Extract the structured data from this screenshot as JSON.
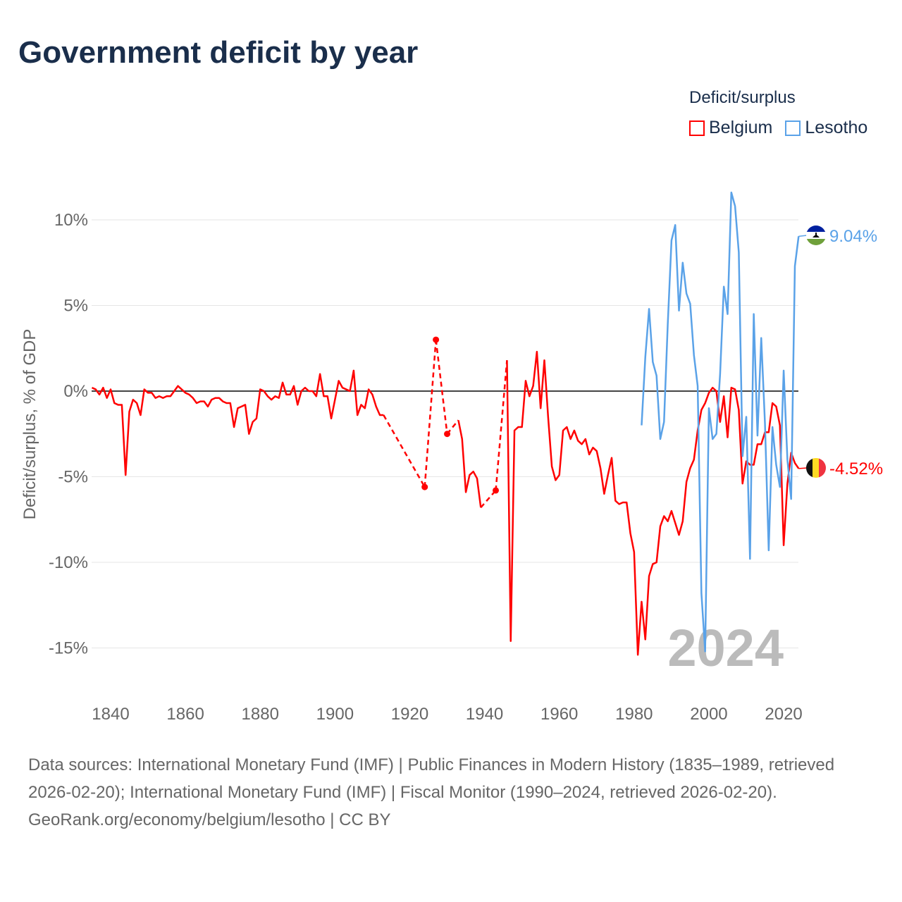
{
  "title": "Government deficit by year",
  "legend": {
    "title": "Deficit/surplus",
    "items": [
      {
        "name": "Belgium",
        "color": "#ff0000"
      },
      {
        "name": "Lesotho",
        "color": "#5aa2e8"
      }
    ]
  },
  "footer": {
    "sources": "Data sources: International Monetary Fund (IMF) | Public Finances in Modern History (1835–1989, retrieved 2026-02-20); International Monetary Fund (IMF) | Fiscal Monitor (1990–2024, retrieved 2026-02-20).",
    "credit": "GeoRank.org/economy/belgium/lesotho | CC BY"
  },
  "chart_data": {
    "type": "line",
    "title": "Government deficit by year",
    "xlabel": "",
    "ylabel": "Deficit/surplus, % of GDP",
    "xlim": [
      1835,
      2024
    ],
    "ylim": [
      -17,
      12
    ],
    "x_ticks": [
      1840,
      1860,
      1880,
      1900,
      1920,
      1940,
      1960,
      1980,
      2000,
      2020
    ],
    "y_ticks": [
      10,
      5,
      0,
      -5,
      -10,
      -15
    ],
    "y_tick_labels": [
      "10%",
      "5%",
      "0%",
      "-5%",
      "-10%",
      "-15%"
    ],
    "grid": true,
    "legend_position": "top-right",
    "year_watermark": "2024",
    "series": [
      {
        "name": "Belgium",
        "color": "#ff0000",
        "end_label": "-4.52%",
        "points": [
          [
            1835,
            0.2
          ],
          [
            1836,
            0.1
          ],
          [
            1837,
            -0.2
          ],
          [
            1838,
            0.2
          ],
          [
            1839,
            -0.4
          ],
          [
            1840,
            0.1
          ],
          [
            1841,
            -0.7
          ],
          [
            1842,
            -0.8
          ],
          [
            1843,
            -0.8
          ],
          [
            1844,
            -4.9
          ],
          [
            1845,
            -1.2
          ],
          [
            1846,
            -0.5
          ],
          [
            1847,
            -0.7
          ],
          [
            1848,
            -1.4
          ],
          [
            1849,
            0.1
          ],
          [
            1850,
            -0.1
          ],
          [
            1851,
            -0.1
          ],
          [
            1852,
            -0.4
          ],
          [
            1853,
            -0.3
          ],
          [
            1854,
            -0.4
          ],
          [
            1855,
            -0.3
          ],
          [
            1856,
            -0.3
          ],
          [
            1857,
            0.0
          ],
          [
            1858,
            0.3
          ],
          [
            1859,
            0.1
          ],
          [
            1860,
            -0.1
          ],
          [
            1861,
            -0.2
          ],
          [
            1862,
            -0.4
          ],
          [
            1863,
            -0.7
          ],
          [
            1864,
            -0.6
          ],
          [
            1865,
            -0.6
          ],
          [
            1866,
            -0.9
          ],
          [
            1867,
            -0.5
          ],
          [
            1868,
            -0.4
          ],
          [
            1869,
            -0.4
          ],
          [
            1870,
            -0.6
          ],
          [
            1871,
            -0.7
          ],
          [
            1872,
            -0.7
          ],
          [
            1873,
            -2.1
          ],
          [
            1874,
            -1.0
          ],
          [
            1875,
            -0.9
          ],
          [
            1876,
            -0.8
          ],
          [
            1877,
            -2.5
          ],
          [
            1878,
            -1.8
          ],
          [
            1879,
            -1.6
          ],
          [
            1880,
            0.1
          ],
          [
            1881,
            0.0
          ],
          [
            1882,
            -0.3
          ],
          [
            1883,
            -0.5
          ],
          [
            1884,
            -0.3
          ],
          [
            1885,
            -0.4
          ],
          [
            1886,
            0.5
          ],
          [
            1887,
            -0.2
          ],
          [
            1888,
            -0.2
          ],
          [
            1889,
            0.3
          ],
          [
            1890,
            -0.8
          ],
          [
            1891,
            0.0
          ],
          [
            1892,
            0.2
          ],
          [
            1893,
            0.0
          ],
          [
            1894,
            0.0
          ],
          [
            1895,
            -0.3
          ],
          [
            1896,
            1.0
          ],
          [
            1897,
            -0.3
          ],
          [
            1898,
            -0.3
          ],
          [
            1899,
            -1.6
          ],
          [
            1900,
            -0.5
          ],
          [
            1901,
            0.6
          ],
          [
            1902,
            0.2
          ],
          [
            1903,
            0.1
          ],
          [
            1904,
            0.0
          ],
          [
            1905,
            1.2
          ],
          [
            1906,
            -1.4
          ],
          [
            1907,
            -0.8
          ],
          [
            1908,
            -1.0
          ],
          [
            1909,
            0.1
          ],
          [
            1910,
            -0.2
          ],
          [
            1911,
            -0.9
          ],
          [
            1912,
            -1.4
          ],
          [
            1913,
            -1.4
          ],
          [
            1924,
            -5.6
          ],
          [
            1927,
            3.0
          ],
          [
            1930,
            -2.5
          ],
          [
            1933,
            -1.7
          ],
          [
            1934,
            -2.8
          ],
          [
            1935,
            -5.9
          ],
          [
            1936,
            -4.9
          ],
          [
            1937,
            -4.7
          ],
          [
            1938,
            -5.1
          ],
          [
            1939,
            -6.8
          ],
          [
            1943,
            -5.8
          ],
          [
            1946,
            1.8
          ],
          [
            1947,
            -14.6
          ],
          [
            1948,
            -2.3
          ],
          [
            1949,
            -2.1
          ],
          [
            1950,
            -2.1
          ],
          [
            1951,
            0.6
          ],
          [
            1952,
            -0.3
          ],
          [
            1953,
            0.3
          ],
          [
            1954,
            2.3
          ],
          [
            1955,
            -1.0
          ],
          [
            1956,
            1.8
          ],
          [
            1957,
            -1.5
          ],
          [
            1958,
            -4.4
          ],
          [
            1959,
            -5.2
          ],
          [
            1960,
            -4.9
          ],
          [
            1961,
            -2.3
          ],
          [
            1962,
            -2.1
          ],
          [
            1963,
            -2.8
          ],
          [
            1964,
            -2.3
          ],
          [
            1965,
            -2.9
          ],
          [
            1966,
            -3.1
          ],
          [
            1967,
            -2.8
          ],
          [
            1968,
            -3.7
          ],
          [
            1969,
            -3.3
          ],
          [
            1970,
            -3.5
          ],
          [
            1971,
            -4.5
          ],
          [
            1972,
            -6.0
          ],
          [
            1973,
            -4.9
          ],
          [
            1974,
            -3.9
          ],
          [
            1975,
            -6.4
          ],
          [
            1976,
            -6.6
          ],
          [
            1977,
            -6.5
          ],
          [
            1978,
            -6.5
          ],
          [
            1979,
            -8.3
          ],
          [
            1980,
            -9.4
          ],
          [
            1981,
            -15.4
          ],
          [
            1982,
            -12.3
          ],
          [
            1983,
            -14.5
          ],
          [
            1984,
            -10.8
          ],
          [
            1985,
            -10.1
          ],
          [
            1986,
            -10.0
          ],
          [
            1987,
            -7.9
          ],
          [
            1988,
            -7.3
          ],
          [
            1989,
            -7.6
          ],
          [
            1990,
            -7.0
          ],
          [
            1991,
            -7.7
          ],
          [
            1992,
            -8.4
          ],
          [
            1993,
            -7.6
          ],
          [
            1994,
            -5.3
          ],
          [
            1995,
            -4.5
          ],
          [
            1996,
            -4.0
          ],
          [
            1997,
            -2.3
          ],
          [
            1998,
            -1.1
          ],
          [
            1999,
            -0.7
          ],
          [
            2000,
            -0.1
          ],
          [
            2001,
            0.2
          ],
          [
            2002,
            0.0
          ],
          [
            2003,
            -1.8
          ],
          [
            2004,
            -0.3
          ],
          [
            2005,
            -2.7
          ],
          [
            2006,
            0.2
          ],
          [
            2007,
            0.1
          ],
          [
            2008,
            -1.1
          ],
          [
            2009,
            -5.4
          ],
          [
            2010,
            -4.1
          ],
          [
            2011,
            -4.3
          ],
          [
            2012,
            -4.3
          ],
          [
            2013,
            -3.1
          ],
          [
            2014,
            -3.1
          ],
          [
            2015,
            -2.4
          ],
          [
            2016,
            -2.4
          ],
          [
            2017,
            -0.7
          ],
          [
            2018,
            -0.9
          ],
          [
            2019,
            -2.0
          ],
          [
            2020,
            -9.0
          ],
          [
            2021,
            -5.4
          ],
          [
            2022,
            -3.6
          ],
          [
            2023,
            -4.2
          ],
          [
            2024,
            -4.52
          ]
        ]
      },
      {
        "name": "Lesotho",
        "color": "#5aa2e8",
        "end_label": "9.04%",
        "points": [
          [
            1982,
            -2.0
          ],
          [
            1983,
            2.0
          ],
          [
            1984,
            4.8
          ],
          [
            1985,
            1.7
          ],
          [
            1986,
            0.9
          ],
          [
            1987,
            -2.8
          ],
          [
            1988,
            -1.8
          ],
          [
            1989,
            3.9
          ],
          [
            1990,
            8.8
          ],
          [
            1991,
            9.7
          ],
          [
            1992,
            4.7
          ],
          [
            1993,
            7.5
          ],
          [
            1994,
            5.7
          ],
          [
            1995,
            5.1
          ],
          [
            1996,
            2.1
          ],
          [
            1997,
            0.3
          ],
          [
            1998,
            -11.8
          ],
          [
            1999,
            -15.2
          ],
          [
            2000,
            -1.0
          ],
          [
            2001,
            -2.8
          ],
          [
            2002,
            -2.5
          ],
          [
            2003,
            1.0
          ],
          [
            2004,
            6.1
          ],
          [
            2005,
            4.5
          ],
          [
            2006,
            11.6
          ],
          [
            2007,
            10.8
          ],
          [
            2008,
            8.1
          ],
          [
            2009,
            -3.8
          ],
          [
            2010,
            -1.5
          ],
          [
            2011,
            -9.8
          ],
          [
            2012,
            4.5
          ],
          [
            2013,
            -2.6
          ],
          [
            2014,
            3.1
          ],
          [
            2015,
            -1.9
          ],
          [
            2016,
            -9.3
          ],
          [
            2017,
            -2.1
          ],
          [
            2018,
            -4.3
          ],
          [
            2019,
            -5.6
          ],
          [
            2020,
            1.2
          ],
          [
            2021,
            -4.0
          ],
          [
            2022,
            -6.3
          ],
          [
            2023,
            7.3
          ],
          [
            2024,
            9.04
          ]
        ]
      }
    ]
  }
}
